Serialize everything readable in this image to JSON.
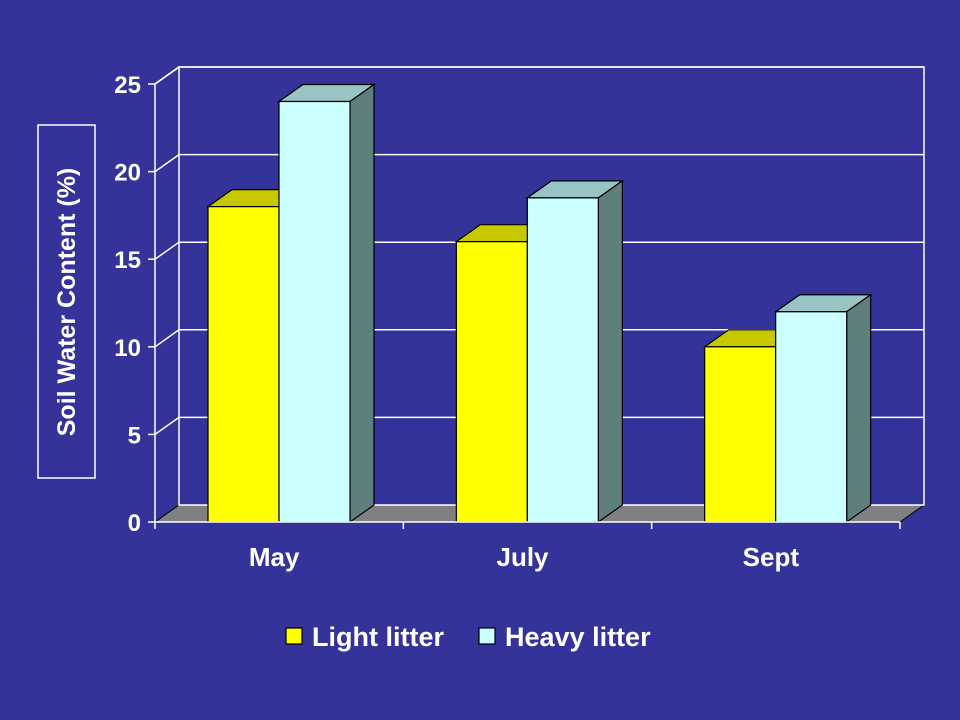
{
  "background_color": "#333399",
  "chart_data": {
    "type": "bar",
    "style": "3d-clustered-column",
    "categories": [
      "May",
      "July",
      "Sept"
    ],
    "series": [
      {
        "name": "Light litter",
        "values": [
          18,
          16,
          10
        ],
        "color": "#ffff00"
      },
      {
        "name": "Heavy litter",
        "values": [
          24,
          18.5,
          12
        ],
        "color": "#ccffff"
      }
    ],
    "ylabel": "Soil Water Content (%)",
    "xlabel": "",
    "ylim": [
      0,
      25
    ],
    "yticks": [
      0,
      5,
      10,
      15,
      20,
      25
    ],
    "grid": true,
    "legend": "bottom"
  }
}
